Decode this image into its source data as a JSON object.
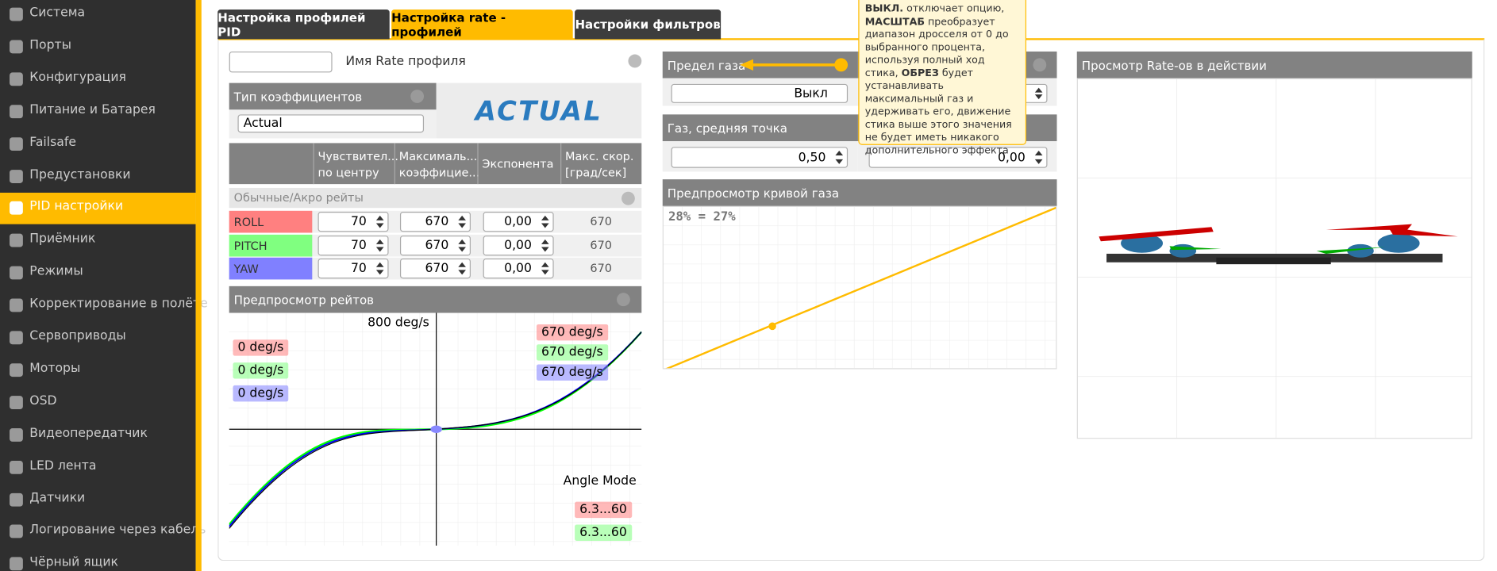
{
  "sidebar": {
    "items": [
      "Система",
      "Порты",
      "Конфигурация",
      "Питание и Батарея",
      "Failsafe",
      "Предустановки",
      "PID настройки",
      "Приёмник",
      "Режимы",
      "Корректирование в полёте",
      "Сервоприводы",
      "Моторы",
      "OSD",
      "Видеопередатчик",
      "LED лента",
      "Датчики",
      "Логирование через кабель",
      "Чёрный ящик"
    ],
    "active": 6
  },
  "tabs": {
    "items": [
      "Настройка профилей PID",
      "Настройка rate - профилей",
      "Настройки фильтров"
    ],
    "active": 1
  },
  "profile_name": {
    "label": "Имя Rate профиля"
  },
  "rates_type": {
    "title": "Тип коэффициентов",
    "selected": "Actual",
    "logo": "ACTUAL"
  },
  "rates_table": {
    "headers": [
      [
        "Чувствител...",
        "по центру"
      ],
      [
        "Максималь...",
        "коэффицие..."
      ],
      [
        "Экспонента"
      ],
      [
        "Макс. скор.",
        "[град/сек]"
      ]
    ],
    "section": "Обычные/Акро рейты",
    "rows": [
      {
        "axis": "ROLL",
        "color": "#ff8080",
        "center": 70,
        "max": 670,
        "expo": "0,00",
        "max_rate": 670
      },
      {
        "axis": "PITCH",
        "color": "#80ff80",
        "center": 70,
        "max": 670,
        "expo": "0,00",
        "max_rate": 670
      },
      {
        "axis": "YAW",
        "color": "#8080ff",
        "center": 70,
        "max": 670,
        "expo": "0,00",
        "max_rate": 670
      }
    ]
  },
  "rate_preview": {
    "title": "Предпросмотр рейтов",
    "max_label": "800 deg/s",
    "current": [
      "0 deg/s",
      "0 deg/s",
      "0 deg/s"
    ],
    "max_rates": [
      "670 deg/s",
      "670 deg/s",
      "670 deg/s"
    ],
    "mode": "Angle Mode",
    "angle": [
      "6.3...60",
      "6.3...60"
    ]
  },
  "throttle_limit": {
    "title": "Предел газа",
    "selected": "Выкл"
  },
  "throttle_mid": {
    "title": "Газ, средняя точка",
    "value": "0,50",
    "second_value": "0,00"
  },
  "throttle_curve": {
    "title": "Предпросмотр кривой газа",
    "readout": "28% = 27%"
  },
  "tooltip": {
    "segments": [
      {
        "text": "ВЫКЛ.",
        "bold": true
      },
      {
        "text": " отключает опцию, ",
        "bold": false
      },
      {
        "text": "МАСШТАБ",
        "bold": true
      },
      {
        "text": " преобразует диапазон дросселя от 0 до выбранного процента, используя полный ход стика, ",
        "bold": false
      },
      {
        "text": "ОБРЕЗ",
        "bold": true
      },
      {
        "text": " будет устанавливать максимальный газ и удерживать его, движение стика выше этого значения не будет иметь никакого дополнительного эффекта",
        "bold": false
      }
    ]
  },
  "preview3d": {
    "title": "Просмотр Rate-ов в действии"
  }
}
